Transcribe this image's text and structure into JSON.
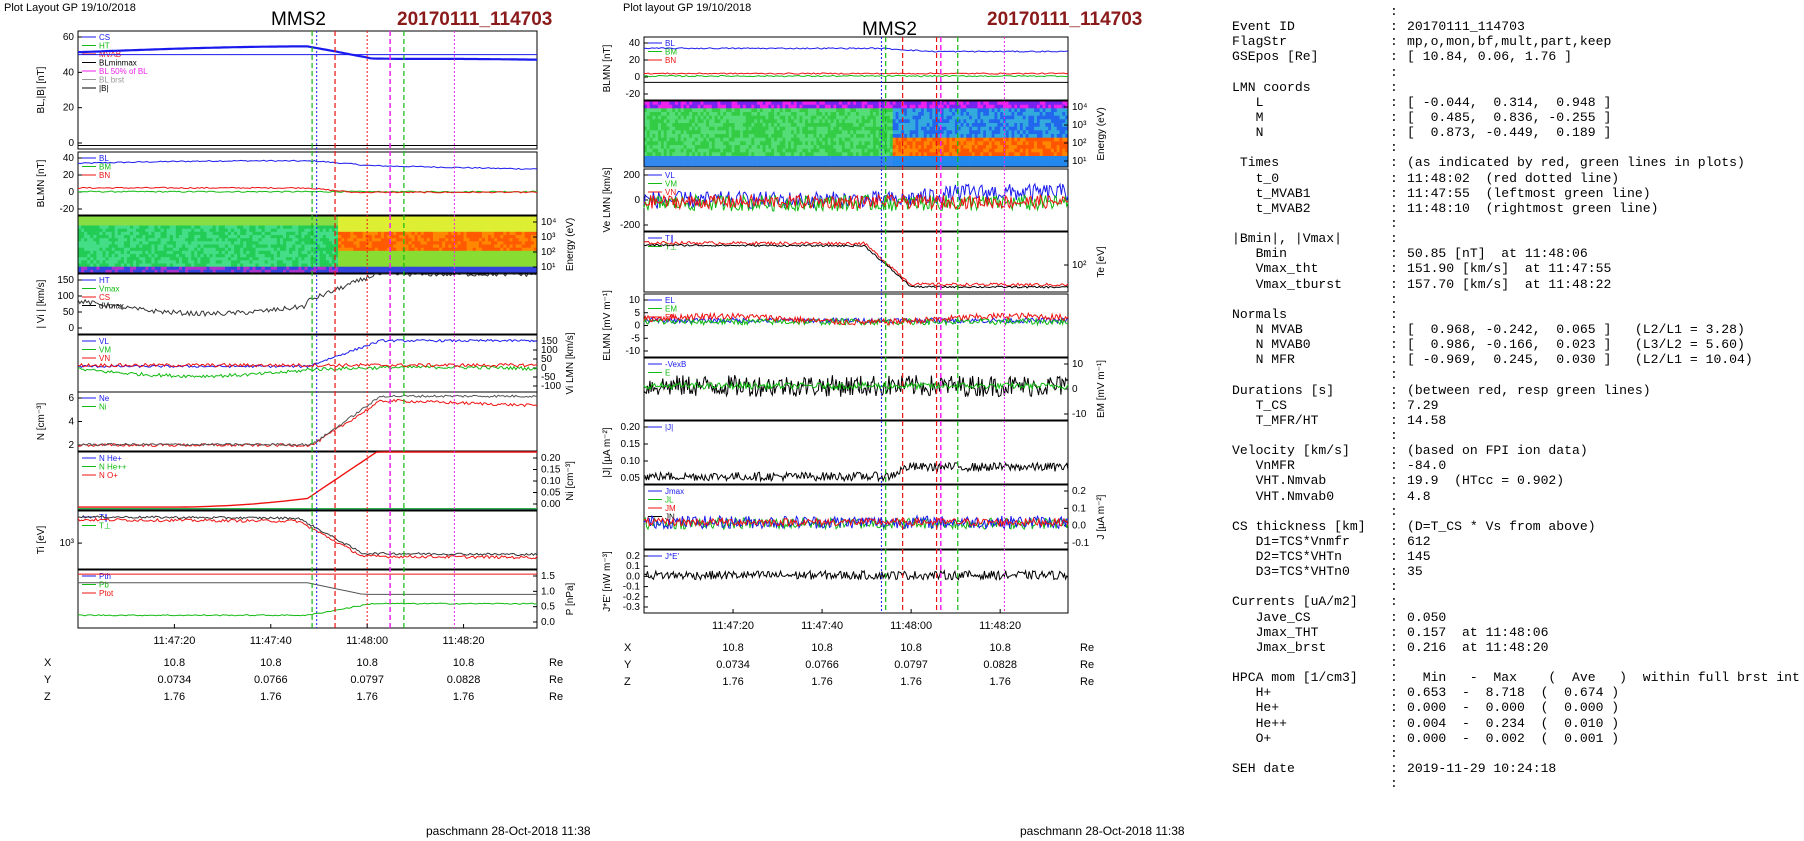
{
  "colors": {
    "red": "#ee1111",
    "green": "#11bb11",
    "blue": "#1a1aee",
    "magenta": "#ee22ee",
    "gray": "#999999",
    "title_red": "#8b1a1a"
  },
  "left": {
    "header": "Plot Layout GP 19/10/2018",
    "spacecraft": "MMS2",
    "event": "20170111_114703",
    "footer": "paschmann 28-Oct-2018 11:38",
    "time_labels": [
      "11:47:20",
      "11:47:40",
      "11:48:00",
      "11:48:20"
    ],
    "ephem": {
      "rows": [
        {
          "name": "X",
          "values": [
            "10.8",
            "10.8",
            "10.8",
            "10.8"
          ],
          "unit": "Re"
        },
        {
          "name": "Y",
          "values": [
            "0.0734",
            "0.0766",
            "0.0797",
            "0.0828"
          ],
          "unit": "Re"
        },
        {
          "name": "Z",
          "values": [
            "1.76",
            "1.76",
            "1.76",
            "1.76"
          ],
          "unit": "Re"
        }
      ]
    },
    "panels": [
      {
        "ylabel": "BL,|B| [nT]",
        "yticks": [
          "60",
          "40",
          "20",
          "0"
        ],
        "legend": [
          "CS",
          "HT",
          "MVAB",
          "BLminmax",
          "BL 50% of BL",
          "BL brst",
          "|B|"
        ]
      },
      {
        "ylabel": "BLMN [nT]",
        "yticks": [
          "40",
          "20",
          "0",
          "-20"
        ],
        "legend": [
          "BL",
          "BM",
          "BN"
        ]
      },
      {
        "ylabel": "Energy (eV)",
        "yticks": [
          "10⁴",
          "10³",
          "10²",
          "10¹"
        ],
        "legend": []
      },
      {
        "ylabel": "| Vi | [km/s]",
        "yticks": [
          "150",
          "100",
          "50",
          "0"
        ],
        "legend": [
          "HT",
          "Vmax",
          "CS",
          "dVmax"
        ]
      },
      {
        "ylabel": "Vi LMN [km/s]",
        "yticks": [
          "150",
          "100",
          "50",
          "0",
          "-50",
          "-100"
        ],
        "legend": [
          "VL",
          "VM",
          "VN"
        ]
      },
      {
        "ylabel": "N [cm⁻³]",
        "yticks": [
          "6",
          "4",
          "2"
        ],
        "legend": [
          "Ne",
          "Ni"
        ]
      },
      {
        "ylabel": "Ni [cm⁻³]",
        "yticks": [
          "0.20",
          "0.15",
          "0.10",
          "0.05",
          "0.00"
        ],
        "legend": [
          "N  He+",
          "N  He++",
          "N  O+"
        ]
      },
      {
        "ylabel": "Ti [eV]",
        "yticks": [
          "10³"
        ],
        "legend": [
          "T∥",
          "T⊥"
        ]
      },
      {
        "ylabel": "P [nPa]",
        "yticks": [
          "1.5",
          "1.0",
          "0.5",
          "0.0"
        ],
        "legend": [
          "Pth",
          "Pb",
          "Ptot"
        ]
      }
    ]
  },
  "right": {
    "header": "Plot layout GP 19/10/2018",
    "spacecraft": "MMS2",
    "event": "20170111_114703",
    "footer": "paschmann 28-Oct-2018 11:38",
    "time_labels": [
      "11:47:20",
      "11:47:40",
      "11:48:00",
      "11:48:20"
    ],
    "ephem": {
      "rows": [
        {
          "name": "X",
          "values": [
            "10.8",
            "10.8",
            "10.8",
            "10.8"
          ],
          "unit": "Re"
        },
        {
          "name": "Y",
          "values": [
            "0.0734",
            "0.0766",
            "0.0797",
            "0.0828"
          ],
          "unit": "Re"
        },
        {
          "name": "Z",
          "values": [
            "1.76",
            "1.76",
            "1.76",
            "1.76"
          ],
          "unit": "Re"
        }
      ]
    },
    "panels": [
      {
        "ylabel": "BLMN [nT]",
        "yticks": [
          "40",
          "20",
          "0",
          "-20"
        ],
        "legend": [
          "BL",
          "BM",
          "BN"
        ]
      },
      {
        "ylabel": "Energy (eV)",
        "yticks": [
          "10⁴",
          "10³",
          "10²",
          "10¹"
        ],
        "legend": []
      },
      {
        "ylabel": "Ve LMN [km/s]",
        "yticks": [
          "200",
          "0",
          "-200"
        ],
        "legend": [
          "VL",
          "VM",
          "VN"
        ]
      },
      {
        "ylabel": "Te [eV]",
        "yticks": [
          "10²"
        ],
        "legend": [
          "T∥",
          "T⊥"
        ]
      },
      {
        "ylabel": "ELMN [mV m⁻¹]",
        "yticks": [
          "10",
          "5",
          "0",
          "-5",
          "-10"
        ],
        "legend": [
          "EL",
          "EM",
          "EN"
        ]
      },
      {
        "ylabel": "EM [mV m⁻¹]",
        "yticks": [
          "10",
          "0",
          "-10"
        ],
        "legend": [
          "-VexB",
          "E"
        ]
      },
      {
        "ylabel": "|J| [µA m⁻²]",
        "yticks": [
          "0.20",
          "0.15",
          "0.10",
          "0.05"
        ],
        "legend": [
          "|J|"
        ]
      },
      {
        "ylabel": "J [µA m⁻²]",
        "yticks": [
          "0.2",
          "0.1",
          "0.0",
          "-0.1"
        ],
        "legend": [
          "Jmax",
          "JL",
          "JM",
          "JN"
        ]
      },
      {
        "ylabel": "J*E' [nW m⁻³]",
        "yticks": [
          "0.2",
          "0.1",
          "0.0",
          "-0.1",
          "-0.2",
          "-0.3"
        ],
        "legend": [
          "J*E'"
        ]
      }
    ]
  },
  "summary": [
    {
      "k": "",
      "v": ""
    },
    {
      "k": "Event ID",
      "v": "20170111_114703"
    },
    {
      "k": "FlagStr",
      "v": "mp,o,mon,bf,mult,part,keep"
    },
    {
      "k": "GSEpos [Re]",
      "v": "[ 10.84, 0.06, 1.76 ]"
    },
    {
      "k": "",
      "v": ""
    },
    {
      "k": "LMN coords",
      "v": ""
    },
    {
      "k": "   L",
      "v": "[ -0.044,  0.314,  0.948 ]"
    },
    {
      "k": "   M",
      "v": "[  0.485,  0.836, -0.255 ]"
    },
    {
      "k": "   N",
      "v": "[  0.873, -0.449,  0.189 ]"
    },
    {
      "k": "",
      "v": ""
    },
    {
      "k": " Times",
      "v": "(as indicated by red, green lines in plots)"
    },
    {
      "k": "   t_0",
      "v": "11:48:02  (red dotted line)"
    },
    {
      "k": "   t_MVAB1",
      "v": "11:47:55  (leftmost green line)"
    },
    {
      "k": "   t_MVAB2",
      "v": "11:48:10  (rightmost green line)"
    },
    {
      "k": "",
      "v": ""
    },
    {
      "k": "|Bmin|, |Vmax|",
      "v": ""
    },
    {
      "k": "   Bmin",
      "v": "50.85 [nT]  at 11:48:06"
    },
    {
      "k": "   Vmax_tht",
      "v": "151.90 [km/s]  at 11:47:55"
    },
    {
      "k": "   Vmax_tburst",
      "v": "157.70 [km/s]  at 11:48:22"
    },
    {
      "k": "",
      "v": ""
    },
    {
      "k": "Normals",
      "v": ""
    },
    {
      "k": "   N MVAB",
      "v": "[  0.968, -0.242,  0.065 ]   (L2/L1 = 3.28)"
    },
    {
      "k": "   N MVAB0",
      "v": "[  0.986, -0.166,  0.023 ]   (L3/L2 = 5.60)"
    },
    {
      "k": "   N MFR",
      "v": "[ -0.969,  0.245,  0.030 ]   (L2/L1 = 10.04)"
    },
    {
      "k": "",
      "v": ""
    },
    {
      "k": "Durations [s]",
      "v": "(between red, resp green lines)"
    },
    {
      "k": "   T_CS",
      "v": "7.29"
    },
    {
      "k": "   T_MFR/HT",
      "v": "14.58"
    },
    {
      "k": "",
      "v": ""
    },
    {
      "k": "Velocity [km/s]",
      "v": "(based on FPI ion data)"
    },
    {
      "k": "   VnMFR",
      "v": "-84.0"
    },
    {
      "k": "   VHT.Nmvab",
      "v": "19.9  (HTcc = 0.902)"
    },
    {
      "k": "   VHT.Nmvab0",
      "v": "4.8"
    },
    {
      "k": "",
      "v": ""
    },
    {
      "k": "CS thickness [km]",
      "v": "(D=T_CS * Vs from above)"
    },
    {
      "k": "   D1=TCS*Vnmfr",
      "v": "612"
    },
    {
      "k": "   D2=TCS*VHTn",
      "v": "145"
    },
    {
      "k": "   D3=TCS*VHTn0",
      "v": "35"
    },
    {
      "k": "",
      "v": ""
    },
    {
      "k": "Currents [uA/m2]",
      "v": ""
    },
    {
      "k": "   Jave_CS",
      "v": "0.050"
    },
    {
      "k": "   Jmax_THT",
      "v": "0.157  at 11:48:06"
    },
    {
      "k": "   Jmax_brst",
      "v": "0.216  at 11:48:20"
    },
    {
      "k": "",
      "v": ""
    },
    {
      "k": "HPCA mom [1/cm3]",
      "v": "  Min   -  Max    (  Ave   )  within full brst int"
    },
    {
      "k": "   H+",
      "v": "0.653  -  8.718  (  0.674 )"
    },
    {
      "k": "   He+",
      "v": "0.000  -  0.000  (  0.000 )"
    },
    {
      "k": "   He++",
      "v": "0.004  -  0.234  (  0.010 )"
    },
    {
      "k": "   O+",
      "v": "0.000  -  0.002  (  0.001 )"
    },
    {
      "k": "",
      "v": ""
    },
    {
      "k": "SEH date",
      "v": "2019-11-29 10:24:18"
    },
    {
      "k": "",
      "v": ""
    }
  ]
}
